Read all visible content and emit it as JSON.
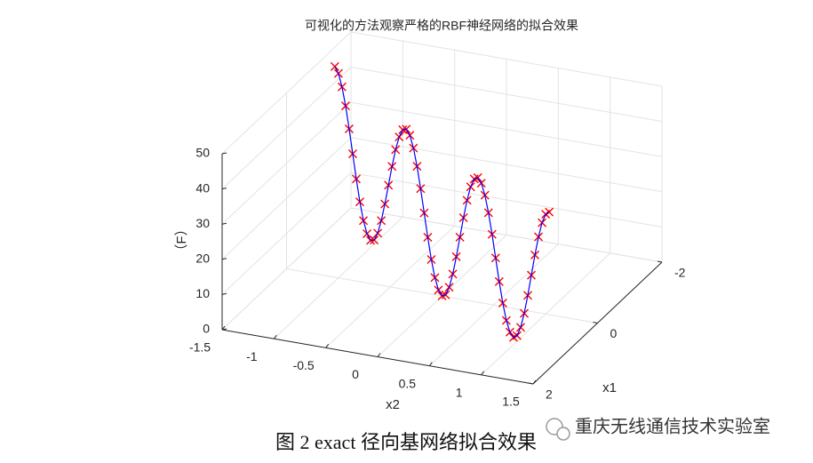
{
  "chart_data": {
    "type": "line3d",
    "title": "可视化的方法观察严格的RBF神经网络的拟合效果",
    "xlabel": "x2",
    "ylabel": "x1",
    "zlabel": "（F）",
    "x": [
      -1.5,
      -1.45,
      -1.4,
      -1.35,
      -1.3,
      -1.25,
      -1.2,
      -1.15,
      -1.1,
      -1.05,
      -1,
      -0.95,
      -0.9,
      -0.85,
      -0.8,
      -0.75,
      -0.7,
      -0.65,
      -0.6,
      -0.55,
      -0.5,
      -0.45,
      -0.4,
      -0.35,
      -0.3,
      -0.25,
      -0.2,
      -0.15,
      -0.1,
      -0.05,
      0,
      0.05,
      0.1,
      0.15,
      0.2,
      0.25,
      0.3,
      0.35,
      0.4,
      0.45,
      0.5,
      0.55,
      0.6,
      0.65,
      0.7,
      0.75,
      0.8,
      0.85,
      0.9,
      0.95,
      1,
      1.05,
      1.1,
      1.15,
      1.2,
      1.25,
      1.3,
      1.35,
      1.4,
      1.45,
      1.5
    ],
    "y": [
      -1.5,
      -1.45,
      -1.4,
      -1.35,
      -1.3,
      -1.25,
      -1.2,
      -1.15,
      -1.1,
      -1.05,
      -1,
      -0.95,
      -0.9,
      -0.85,
      -0.8,
      -0.75,
      -0.7,
      -0.65,
      -0.6,
      -0.55,
      -0.5,
      -0.45,
      -0.4,
      -0.35,
      -0.3,
      -0.25,
      -0.2,
      -0.15,
      -0.1,
      -0.05,
      0,
      0.05,
      0.1,
      0.15,
      0.2,
      0.25,
      0.3,
      0.35,
      0.4,
      0.45,
      0.5,
      0.55,
      0.6,
      0.65,
      0.7,
      0.75,
      0.8,
      0.85,
      0.9,
      0.95,
      1,
      1.05,
      1.1,
      1.15,
      1.2,
      1.25,
      1.3,
      1.35,
      1.4,
      1.45,
      1.5
    ],
    "series": [
      {
        "color": "#ff0000",
        "style": "marker-x",
        "values": [
          44.5,
          43.23,
          40.1,
          35.41,
          29.56,
          23.13,
          16.7,
          10.89,
          6.24,
          3.19,
          2,
          2.79,
          5.44,
          9.69,
          15.1,
          21.13,
          27.16,
          32.61,
          36.9,
          39.63,
          40.5,
          39.43,
          36.5,
          32.01,
          26.36,
          20.13,
          13.9,
          8.29,
          3.84,
          0.99,
          0,
          0.99,
          3.84,
          8.29,
          13.9,
          20.13,
          26.36,
          32.01,
          36.5,
          39.43,
          40.5,
          39.63,
          36.9,
          32.61,
          27.16,
          21.13,
          15.1,
          9.69,
          5.44,
          2.79,
          2,
          3.19,
          6.24,
          10.89,
          16.7,
          23.13,
          29.56,
          35.41,
          40.1,
          43.23,
          44.5
        ]
      },
      {
        "color": "#0000ff",
        "style": "line",
        "values": [
          44.5,
          43.23,
          40.1,
          35.41,
          29.56,
          23.13,
          16.7,
          10.89,
          6.24,
          3.19,
          2,
          2.79,
          5.44,
          9.69,
          15.1,
          21.13,
          27.16,
          32.61,
          36.9,
          39.63,
          40.5,
          39.43,
          36.5,
          32.01,
          26.36,
          20.13,
          13.9,
          8.29,
          3.84,
          0.99,
          0,
          0.99,
          3.84,
          8.29,
          13.9,
          20.13,
          26.36,
          32.01,
          36.5,
          39.43,
          40.5,
          39.63,
          36.9,
          32.61,
          27.16,
          21.13,
          15.1,
          9.69,
          5.44,
          2.79,
          2,
          3.19,
          6.24,
          10.89,
          16.7,
          23.13,
          29.56,
          35.41,
          40.1,
          43.23,
          44.5
        ]
      }
    ],
    "xlim": [
      -1.5,
      1.5
    ],
    "xticks": [
      -1.5,
      -1,
      -0.5,
      0,
      0.5,
      1,
      1.5
    ],
    "ylim": [
      -2,
      2
    ],
    "yticks": [
      -2,
      0,
      2
    ],
    "zlim": [
      0,
      50
    ],
    "zticks": [
      0,
      10,
      20,
      30,
      40,
      50
    ],
    "grid": true
  },
  "caption": "图 2 exact  径向基网络拟合效果",
  "watermark": "重庆无线通信技术实验室"
}
